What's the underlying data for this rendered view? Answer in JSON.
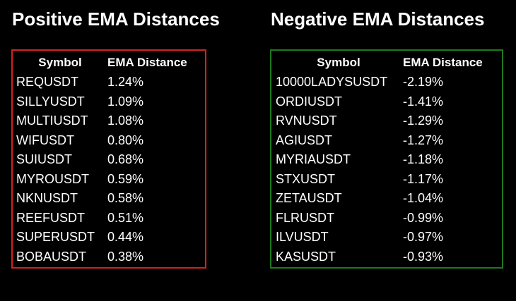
{
  "panels": [
    {
      "title": "Positive EMA Distances",
      "table": {
        "header": [
          "Symbol",
          "EMA Distance"
        ],
        "rows": [
          [
            "REQUSDT",
            "1.24%"
          ],
          [
            "SILLYUSDT",
            "1.09%"
          ],
          [
            "MULTIUSDT",
            "1.08%"
          ],
          [
            "WIFUSDT",
            "0.80%"
          ],
          [
            "SUIUSDT",
            "0.68%"
          ],
          [
            "MYROUSDT",
            "0.59%"
          ],
          [
            "NKNUSDT",
            "0.58%"
          ],
          [
            "REEFUSDT",
            "0.51%"
          ],
          [
            "SUPERUSDT",
            "0.44%"
          ],
          [
            "BOBAUSDT",
            "0.38%"
          ]
        ]
      }
    },
    {
      "title": "Negative EMA Distances",
      "table": {
        "header": [
          "Symbol",
          "EMA Distance"
        ],
        "rows": [
          [
            "10000LADYSUSDT",
            "-2.19%"
          ],
          [
            "ORDIUSDT",
            "-1.41%"
          ],
          [
            "RVNUSDT",
            "-1.29%"
          ],
          [
            "AGIUSDT",
            "-1.27%"
          ],
          [
            "MYRIAUSDT",
            "-1.18%"
          ],
          [
            "STXUSDT",
            "-1.17%"
          ],
          [
            "ZETAUSDT",
            "-1.04%"
          ],
          [
            "FLRUSDT",
            "-0.99%"
          ],
          [
            "ILVUSDT",
            "-0.97%"
          ],
          [
            "KASUSDT",
            "-0.93%"
          ]
        ]
      }
    }
  ]
}
